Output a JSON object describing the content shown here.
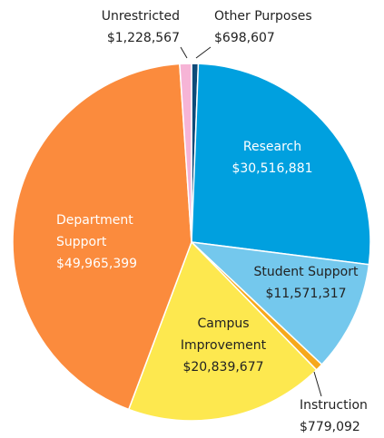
{
  "chart_data": {
    "type": "pie",
    "categories": [
      "Other Purposes",
      "Research",
      "Student Support",
      "Instruction",
      "Campus Improvement",
      "Department Support",
      "Unrestricted"
    ],
    "values": [
      698607,
      30516881,
      11571317,
      779092,
      20839677,
      49965399,
      1228567
    ],
    "value_labels": [
      "$698,607",
      "$30,516,881",
      "$11,571,317",
      "$779,092",
      "$20,839,677",
      "$49,965,399",
      "$1,228,567"
    ],
    "colors": [
      "#0d4a78",
      "#00a0df",
      "#74c8ed",
      "#f6a81c",
      "#fde84f",
      "#fb8b3d",
      "#f6b4d6"
    ]
  }
}
